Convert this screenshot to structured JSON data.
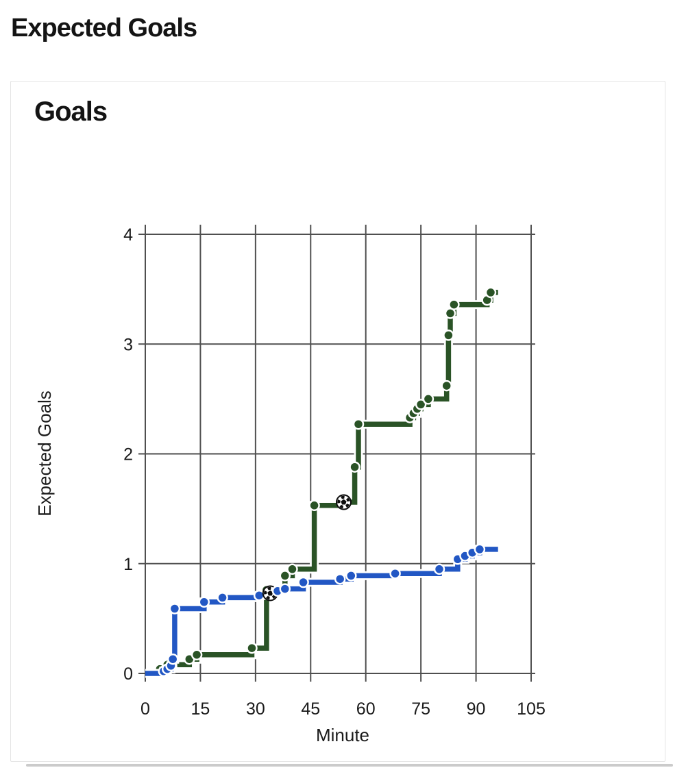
{
  "page": {
    "title": "Expected Goals"
  },
  "card": {
    "title": "Goals"
  },
  "colors": {
    "green_team": "#2a5326",
    "blue_team": "#2257c4",
    "grid": "#4f4f4f",
    "card_border": "#e4e4e4",
    "text": "#141414"
  },
  "chart_data": {
    "type": "line",
    "variant": "step_cumulative_xg",
    "title": "Goals",
    "xlabel": "Minute",
    "ylabel": "Expected Goals",
    "xlim": [
      0,
      105
    ],
    "ylim": [
      0,
      4
    ],
    "x_ticks": [
      0,
      15,
      30,
      45,
      60,
      75,
      90,
      105
    ],
    "y_ticks": [
      0,
      1,
      2,
      3,
      4
    ],
    "grid": true,
    "legend": "none",
    "end_minute": 96,
    "goal_marker": "soccer-ball-icon",
    "series": [
      {
        "name": "green-team",
        "color": "#2a5326",
        "final_xg": 3.47,
        "goals": 1,
        "shots": [
          {
            "minute": 4,
            "cum_xg": 0.04
          },
          {
            "minute": 6,
            "cum_xg": 0.08
          },
          {
            "minute": 12,
            "cum_xg": 0.13
          },
          {
            "minute": 14,
            "cum_xg": 0.17
          },
          {
            "minute": 29,
            "cum_xg": 0.23
          },
          {
            "minute": 33,
            "cum_xg": 0.76
          },
          {
            "minute": 38,
            "cum_xg": 0.89
          },
          {
            "minute": 40,
            "cum_xg": 0.95
          },
          {
            "minute": 46,
            "cum_xg": 1.53
          },
          {
            "minute": 54,
            "cum_xg": 1.56,
            "goal": true
          },
          {
            "minute": 57,
            "cum_xg": 1.88
          },
          {
            "minute": 58,
            "cum_xg": 2.27
          },
          {
            "minute": 72,
            "cum_xg": 2.33
          },
          {
            "minute": 73,
            "cum_xg": 2.37
          },
          {
            "minute": 74,
            "cum_xg": 2.41
          },
          {
            "minute": 75,
            "cum_xg": 2.45
          },
          {
            "minute": 77,
            "cum_xg": 2.5
          },
          {
            "minute": 82,
            "cum_xg": 2.62
          },
          {
            "minute": 82.5,
            "cum_xg": 3.08
          },
          {
            "minute": 83,
            "cum_xg": 3.28
          },
          {
            "minute": 84,
            "cum_xg": 3.36
          },
          {
            "minute": 93,
            "cum_xg": 3.4
          },
          {
            "minute": 94,
            "cum_xg": 3.47
          }
        ]
      },
      {
        "name": "blue-team",
        "color": "#2257c4",
        "final_xg": 1.13,
        "goals": 1,
        "shots": [
          {
            "minute": 5,
            "cum_xg": 0.02
          },
          {
            "minute": 6,
            "cum_xg": 0.04
          },
          {
            "minute": 7,
            "cum_xg": 0.07
          },
          {
            "minute": 7.5,
            "cum_xg": 0.13
          },
          {
            "minute": 8,
            "cum_xg": 0.59
          },
          {
            "minute": 16,
            "cum_xg": 0.65
          },
          {
            "minute": 21,
            "cum_xg": 0.69
          },
          {
            "minute": 31,
            "cum_xg": 0.71
          },
          {
            "minute": 34,
            "cum_xg": 0.73,
            "goal": true
          },
          {
            "minute": 36,
            "cum_xg": 0.75
          },
          {
            "minute": 38,
            "cum_xg": 0.77
          },
          {
            "minute": 43,
            "cum_xg": 0.83
          },
          {
            "minute": 53,
            "cum_xg": 0.86
          },
          {
            "minute": 56,
            "cum_xg": 0.89
          },
          {
            "minute": 68,
            "cum_xg": 0.91
          },
          {
            "minute": 80,
            "cum_xg": 0.95
          },
          {
            "minute": 85,
            "cum_xg": 1.04
          },
          {
            "minute": 87,
            "cum_xg": 1.07
          },
          {
            "minute": 89,
            "cum_xg": 1.1
          },
          {
            "minute": 91,
            "cum_xg": 1.13
          }
        ]
      }
    ]
  }
}
